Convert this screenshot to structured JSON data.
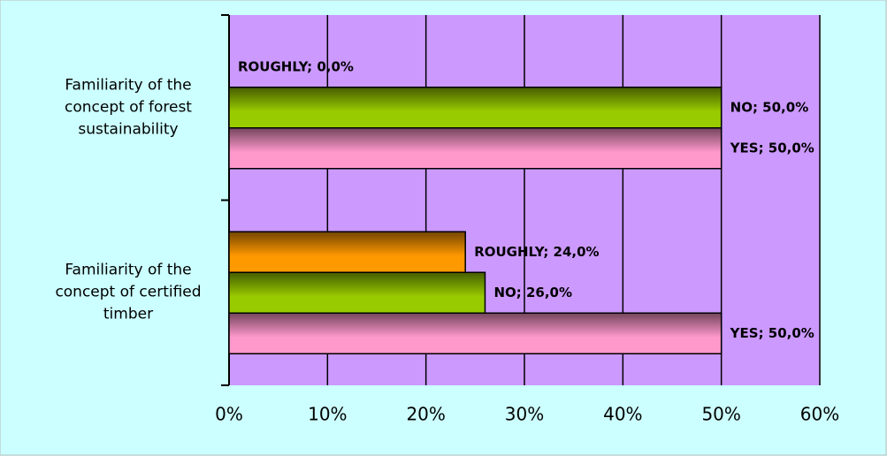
{
  "chart_data": {
    "type": "bar",
    "orientation": "horizontal",
    "categories": [
      "Familiarity of the concept of forest sustainability",
      "Familiarity of the concept of certified timber"
    ],
    "series": [
      {
        "name": "YES",
        "color": "#ff99cc",
        "values": [
          50,
          50
        ],
        "value_labels": [
          "YES; 50,0%",
          "YES; 50,0%"
        ]
      },
      {
        "name": "NO",
        "color": "#99cc00",
        "values": [
          50,
          26
        ],
        "value_labels": [
          "NO; 50,0%",
          "NO; 26,0%"
        ]
      },
      {
        "name": "ROUGHLY",
        "color": "#ff9900",
        "values": [
          0,
          24
        ],
        "value_labels": [
          "ROUGHLY; 0,0%",
          "ROUGHLY; 24,0%"
        ]
      }
    ],
    "xlim": [
      0,
      60
    ],
    "xticks": [
      {
        "value": 0,
        "label": "0%"
      },
      {
        "value": 10,
        "label": "10%"
      },
      {
        "value": 20,
        "label": "20%"
      },
      {
        "value": 30,
        "label": "30%"
      },
      {
        "value": 40,
        "label": "40%"
      },
      {
        "value": 50,
        "label": "50%"
      },
      {
        "value": 60,
        "label": "60%"
      }
    ],
    "grid": true,
    "plot_color": "#cc99ff",
    "background": "#ccffff"
  }
}
